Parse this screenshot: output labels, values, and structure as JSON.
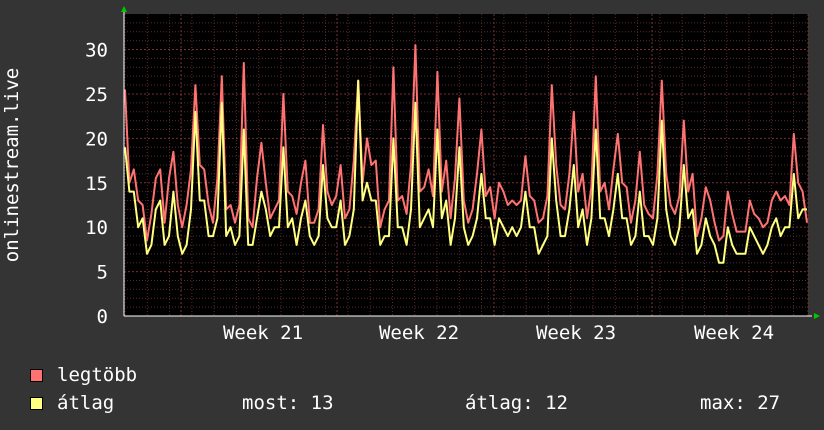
{
  "chart_data": {
    "type": "line",
    "ylabel": "onlinestream.live",
    "yticks": [
      0,
      5,
      10,
      15,
      20,
      25,
      30
    ],
    "ylim": [
      0,
      34
    ],
    "xticks": [
      "Week 21",
      "Week 22",
      "Week 23",
      "Week 24"
    ],
    "grid": true,
    "series": [
      {
        "name": "legtöbb",
        "color": "#ff7272",
        "values": [
          25.5,
          15,
          16.5,
          13,
          12.5,
          8.5,
          11.5,
          15.5,
          16.5,
          10.5,
          15.5,
          18.5,
          12.5,
          10,
          12.5,
          16.5,
          26,
          17,
          16.5,
          12.5,
          10.5,
          15.5,
          27,
          12,
          12.5,
          10.5,
          12.5,
          28.5,
          11,
          10,
          15.5,
          19.5,
          15,
          11,
          12,
          13,
          25,
          14,
          13.5,
          11.5,
          15,
          17.5,
          10.5,
          10.5,
          12,
          21.5,
          14,
          12.5,
          13.5,
          17,
          11,
          12,
          17.5,
          26.5,
          15,
          20,
          17,
          17.5,
          10,
          12,
          13,
          28,
          13,
          13.5,
          11.5,
          17,
          30.5,
          14,
          14.5,
          16.5,
          13.5,
          27.5,
          14,
          17.5,
          11,
          15.5,
          24.5,
          13,
          10.5,
          12,
          16,
          21,
          13.5,
          14.5,
          11,
          15,
          14,
          12.5,
          13,
          12.5,
          13,
          18,
          13.5,
          13,
          10.5,
          11,
          13.5,
          26,
          17,
          12.5,
          12,
          16,
          23,
          14,
          16,
          11,
          14.5,
          27,
          14,
          15,
          12,
          16.5,
          20.5,
          15,
          14.5,
          10.5,
          13,
          18.5,
          12.5,
          11.5,
          11,
          16,
          26.5,
          16,
          12.5,
          11.5,
          13.5,
          22,
          14,
          16,
          9,
          11,
          14.5,
          13,
          10.5,
          8.5,
          9,
          14,
          11.5,
          9.5,
          9.5,
          9.5,
          13,
          11.5,
          11,
          10,
          10.5,
          13,
          14,
          13,
          13.5,
          12.5,
          20.5,
          15,
          14,
          10.5
        ],
        "tooltip_note": ""
      },
      {
        "name": "átlag",
        "color": "#ffff80",
        "values": [
          19,
          14,
          14,
          10,
          11,
          7,
          8,
          12,
          13,
          8,
          9,
          14,
          9,
          7,
          8,
          12,
          23,
          13,
          13,
          9,
          9,
          11,
          24,
          9,
          10,
          8,
          9,
          21,
          8,
          8,
          11,
          14,
          12,
          9,
          10,
          10,
          19,
          10,
          11,
          8,
          11,
          13,
          9,
          8,
          9,
          17,
          11,
          10,
          10,
          13,
          8,
          9,
          12,
          26.5,
          13,
          15,
          13,
          13,
          8,
          9,
          9,
          20,
          10,
          10,
          8,
          12,
          24,
          10,
          11,
          12,
          10,
          21,
          11,
          13,
          8,
          11,
          19,
          10,
          8,
          9,
          11,
          16,
          11,
          11,
          8,
          11,
          10,
          9,
          10,
          9,
          10,
          14,
          10,
          10,
          7,
          8,
          9,
          20,
          13,
          9,
          9,
          12,
          17,
          10,
          12,
          8,
          11,
          21,
          11,
          11,
          9,
          12,
          16,
          11,
          11,
          8,
          9,
          14,
          9,
          9,
          8,
          11,
          22,
          12,
          9,
          8,
          10,
          17,
          11,
          12,
          7,
          8,
          11,
          9,
          8,
          6,
          6,
          10,
          8,
          7,
          7,
          7,
          10,
          9,
          8,
          7,
          8,
          10,
          11,
          9,
          10,
          10,
          16,
          11,
          12,
          12
        ],
        "tooltip_note": ""
      }
    ],
    "legend": [
      {
        "label": "legtöbb",
        "color": "#ff7272"
      },
      {
        "label": "átlag",
        "color": "#ffff80"
      }
    ]
  },
  "stats": {
    "most": "most: 13",
    "atlag": "átlag: 12",
    "max": "max: 27"
  }
}
